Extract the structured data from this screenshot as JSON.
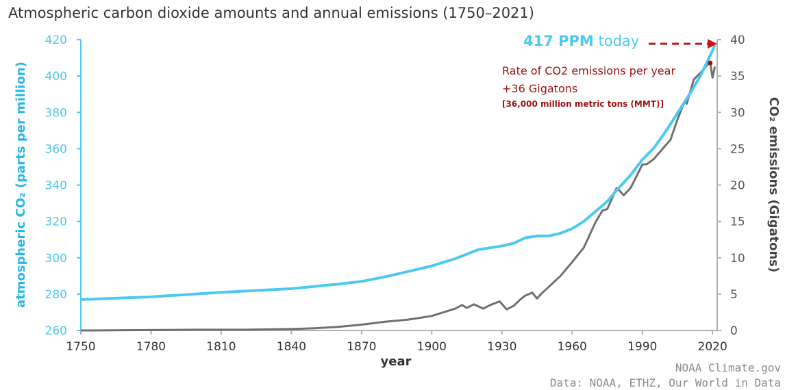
{
  "chart_data": {
    "type": "line",
    "title": "Atmospheric carbon dioxide amounts and annual emissions (1750–2021)",
    "xlabel": "year",
    "ylabel_left": "atmospheric CO₂ (parts per million)",
    "ylabel_right": "CO₂ emissions (Gigatons)",
    "xlim": [
      1750,
      2022
    ],
    "ylim_left": [
      260,
      420
    ],
    "ylim_right": [
      0,
      40
    ],
    "x_ticks": [
      1750,
      1780,
      1810,
      1840,
      1870,
      1900,
      1930,
      1960,
      1990,
      2020
    ],
    "y_left_ticks": [
      260,
      280,
      300,
      320,
      340,
      360,
      380,
      400,
      420
    ],
    "y_right_ticks": [
      0,
      5,
      10,
      15,
      20,
      25,
      30,
      35,
      40
    ],
    "colors": {
      "co2": "#4cc9f0",
      "emissions": "#707070",
      "annotation": "#9b1111"
    },
    "series": [
      {
        "name": "atmospheric CO2 (ppm)",
        "axis": "left",
        "x": [
          1750,
          1780,
          1810,
          1840,
          1860,
          1870,
          1880,
          1890,
          1900,
          1910,
          1920,
          1930,
          1935,
          1940,
          1945,
          1950,
          1955,
          1960,
          1965,
          1970,
          1975,
          1980,
          1985,
          1990,
          1995,
          2000,
          2005,
          2010,
          2015,
          2018,
          2020,
          2021
        ],
        "values": [
          277,
          278.5,
          281,
          283,
          285.5,
          287,
          289.5,
          292.5,
          295.5,
          299.5,
          304.5,
          306.5,
          308,
          311,
          312,
          312,
          313.5,
          316,
          320,
          325.5,
          331,
          338.5,
          345.5,
          354,
          360.5,
          369.5,
          379.5,
          389.5,
          400.5,
          408.5,
          414,
          417
        ]
      },
      {
        "name": "CO2 emissions (Gigatons)",
        "axis": "right",
        "x": [
          1750,
          1800,
          1820,
          1840,
          1850,
          1860,
          1870,
          1880,
          1890,
          1900,
          1905,
          1910,
          1913,
          1915,
          1918,
          1920,
          1922,
          1925,
          1929,
          1932,
          1935,
          1938,
          1940,
          1943,
          1945,
          1947,
          1950,
          1955,
          1960,
          1965,
          1970,
          1973,
          1975,
          1979,
          1980,
          1982,
          1985,
          1990,
          1992,
          1995,
          2000,
          2002,
          2005,
          2008,
          2009,
          2012,
          2015,
          2018,
          2019,
          2020,
          2021
        ],
        "values": [
          0,
          0.1,
          0.1,
          0.2,
          0.3,
          0.5,
          0.8,
          1.2,
          1.5,
          2.0,
          2.5,
          3.0,
          3.5,
          3.1,
          3.6,
          3.3,
          3.0,
          3.5,
          4.0,
          2.9,
          3.4,
          4.3,
          4.8,
          5.2,
          4.4,
          5.1,
          6.0,
          7.5,
          9.4,
          11.4,
          14.9,
          16.5,
          16.7,
          19.6,
          19.3,
          18.6,
          19.6,
          22.8,
          22.9,
          23.6,
          25.5,
          26.2,
          29.0,
          31.5,
          31.2,
          34.5,
          35.5,
          36.6,
          36.8,
          34.8,
          36.3
        ]
      }
    ],
    "annotations": {
      "ppm_value": "417 PPM",
      "ppm_suffix": " today",
      "rate_line1": "Rate of CO2 emissions per year",
      "rate_line2": "+36 Gigatons",
      "rate_line3": "[36,000 million metric tons (MMT)]"
    },
    "credits": {
      "line1": "NOAA Climate.gov",
      "line2": "Data: NOAA, ETHZ, Our World in Data"
    }
  }
}
